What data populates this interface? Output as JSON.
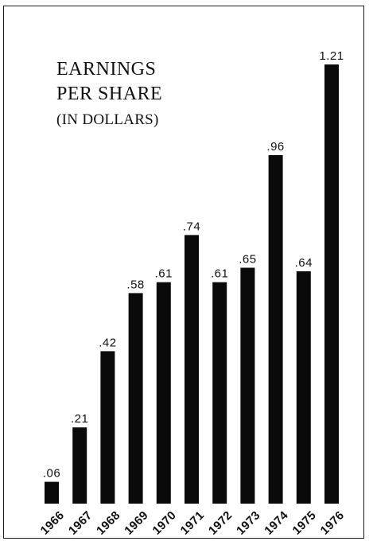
{
  "title": {
    "line1": "EARNINGS",
    "line2": "PER SHARE",
    "subtitle": "(IN DOLLARS)"
  },
  "colors": {
    "bar": "#0a0a0a",
    "background": "#ffffff",
    "text": "#111111"
  },
  "chart_data": {
    "type": "bar",
    "title": "EARNINGS PER SHARE",
    "subtitle": "(IN DOLLARS)",
    "categories": [
      "1966",
      "1967",
      "1968",
      "1969",
      "1970",
      "1971",
      "1972",
      "1973",
      "1974",
      "1975",
      "1976"
    ],
    "values": [
      0.06,
      0.21,
      0.42,
      0.58,
      0.61,
      0.74,
      0.61,
      0.65,
      0.96,
      0.64,
      1.21
    ],
    "value_labels": [
      ".06",
      ".21",
      ".42",
      ".58",
      ".61",
      ".74",
      ".61",
      ".65",
      ".96",
      ".64",
      "1.21"
    ],
    "xlabel": "",
    "ylabel": "",
    "ylim": [
      0,
      1.21
    ],
    "grid": false,
    "legend": "none",
    "tick_label_rotation": "diagonal"
  }
}
